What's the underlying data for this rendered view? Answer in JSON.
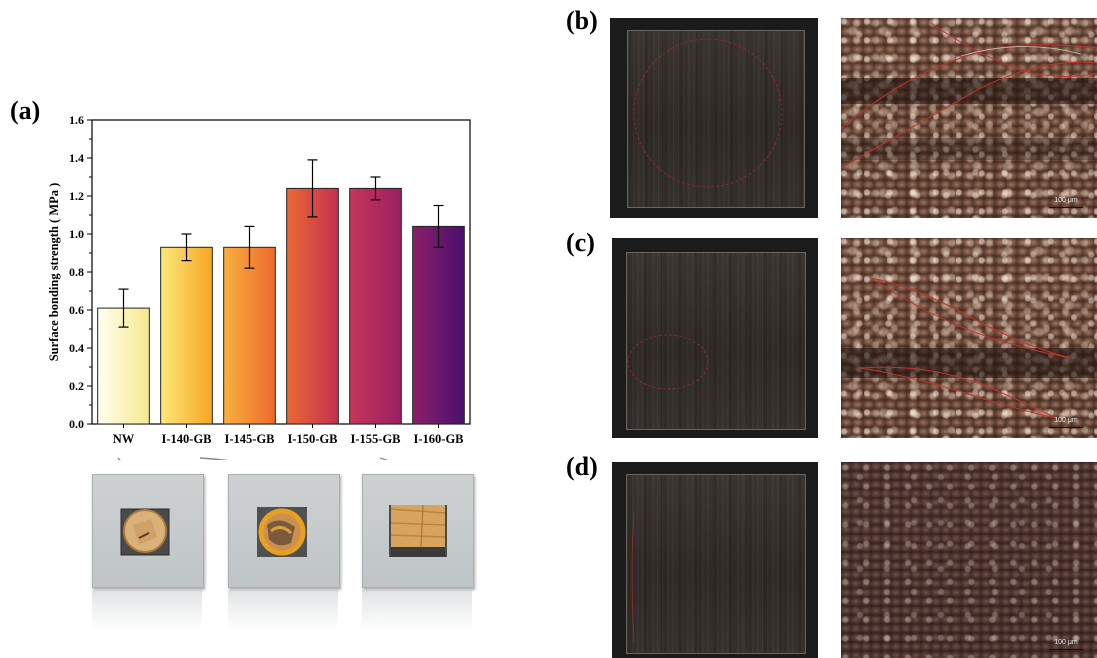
{
  "panels": {
    "a": "(a)",
    "b": "(b)",
    "c": "(c)",
    "d": "(d)"
  },
  "chart_data": {
    "type": "bar",
    "categories": [
      "NW",
      "I-140-GB",
      "I-145-GB",
      "I-150-GB",
      "I-155-GB",
      "I-160-GB"
    ],
    "values": [
      0.61,
      0.93,
      0.93,
      1.24,
      1.24,
      1.04
    ],
    "errors": [
      0.1,
      0.07,
      0.11,
      0.15,
      0.06,
      0.11
    ],
    "ylabel": "Surface bonding strength ( MPa )",
    "ylim": [
      0.0,
      1.6
    ],
    "yticks": [
      "0.0",
      "0.2",
      "0.4",
      "0.6",
      "0.8",
      "1.0",
      "1.2",
      "1.4",
      "1.6"
    ],
    "grid": false,
    "colors": [
      [
        "#fffef0",
        "#f6e88e"
      ],
      [
        "#fde87a",
        "#f5a623"
      ],
      [
        "#f9b040",
        "#ec6a2c"
      ],
      [
        "#ea6a34",
        "#c3304e"
      ],
      [
        "#c6365a",
        "#9b1f62"
      ],
      [
        "#8c1f6b",
        "#4a0f6c"
      ]
    ]
  },
  "photos": [
    "bonded-sample-NW",
    "bonded-sample-I-140-GB",
    "bonded-sample-I-155-GB"
  ],
  "micrographs": {
    "b": {
      "scale": "100 μm"
    },
    "c": {
      "scale": "100 μm"
    },
    "d": {
      "scale": "100 μm"
    }
  }
}
